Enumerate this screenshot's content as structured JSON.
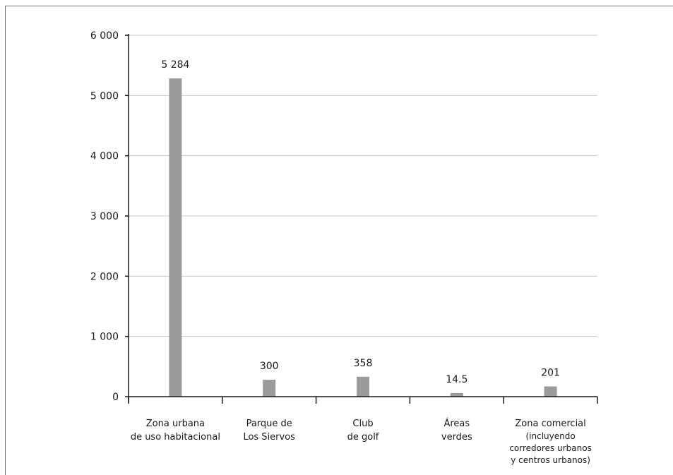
{
  "chart_data": {
    "type": "bar",
    "categories": [
      [
        "Zona urbana",
        "de uso habitacional"
      ],
      [
        "Parque de",
        "Los Siervos"
      ],
      [
        "Club",
        "de golf"
      ],
      [
        "Áreas",
        "verdes"
      ],
      [
        "Zona comercial",
        "(incluyendo",
        "corredores urbanos",
        "y centros urbanos)"
      ]
    ],
    "values": [
      5284,
      300,
      358,
      14.5,
      201
    ],
    "bar_heights": [
      5284,
      280,
      330,
      60,
      170
    ],
    "value_labels": [
      "5 284",
      "300",
      "358",
      "14.5",
      "201"
    ],
    "ylim": [
      0,
      6000
    ],
    "yticks": [
      0,
      1000,
      2000,
      3000,
      4000,
      5000,
      6000
    ],
    "ytick_labels": [
      "0",
      "1 000",
      "2 000",
      "3 000",
      "4 000",
      "5 000",
      "6 000"
    ],
    "grid": true,
    "bar_color": "#9b9b9b",
    "grid_color": "#c8c8c8",
    "axis_color": "#1a1a1a"
  }
}
